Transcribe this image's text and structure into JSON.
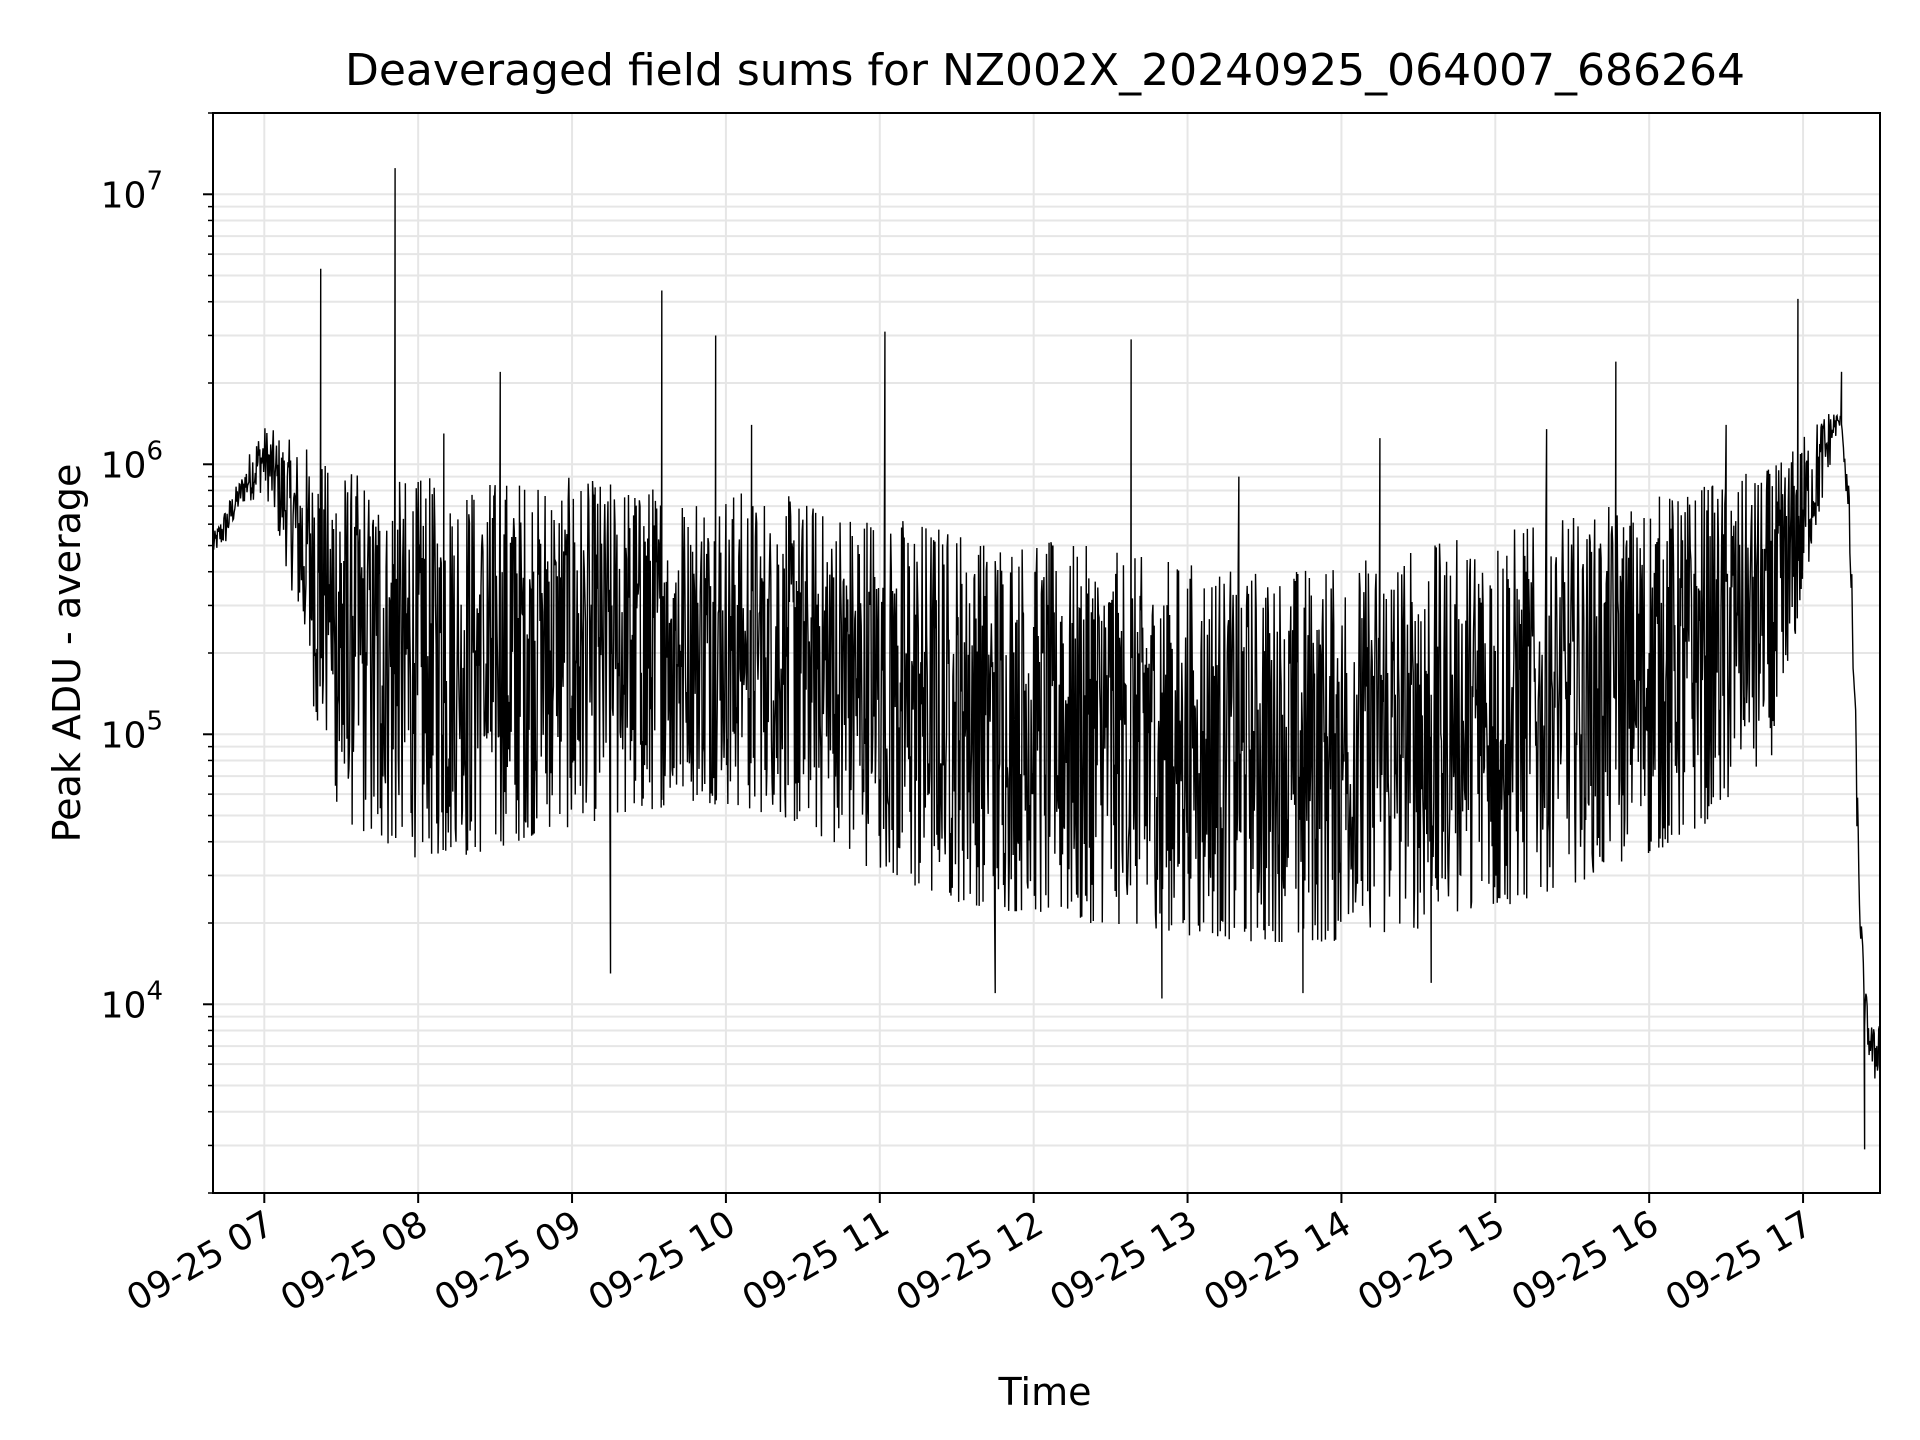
{
  "chart_data": {
    "type": "line",
    "title": "Deaveraged field sums for NZ002X_20240925_064007_686264",
    "xlabel": "Time",
    "ylabel": "Peak ADU - average",
    "yscale": "log",
    "ylim": [
      2000,
      20000000
    ],
    "xlim": [
      "2024-09-25 06:40",
      "2024-09-25 17:30"
    ],
    "grid": true,
    "legend": "none",
    "line_color": "#000000",
    "x_ticks": [
      "09-25 07",
      "09-25 08",
      "09-25 09",
      "09-25 10",
      "09-25 11",
      "09-25 12",
      "09-25 13",
      "09-25 14",
      "09-25 15",
      "09-25 16",
      "09-25 17"
    ],
    "y_ticks": [
      {
        "value": 10000,
        "base": "10",
        "exp": "4"
      },
      {
        "value": 100000,
        "base": "10",
        "exp": "5"
      },
      {
        "value": 1000000,
        "base": "10",
        "exp": "6"
      },
      {
        "value": 10000000,
        "base": "10",
        "exp": "7"
      }
    ],
    "series": [
      {
        "x": [
          "06:40",
          "06:42",
          "06:45",
          "06:48",
          "06:51",
          "06:54",
          "06:57",
          "07:00",
          "07:03",
          "07:06",
          "07:09",
          "07:12",
          "07:15",
          "07:18",
          "07:21",
          "07:24",
          "07:27",
          "07:30",
          "07:35",
          "07:40",
          "07:45",
          "07:50",
          "07:55",
          "08:00",
          "08:10",
          "08:20",
          "08:30",
          "08:40",
          "08:50",
          "09:00",
          "09:10",
          "09:20",
          "09:30",
          "09:40",
          "09:50",
          "10:00",
          "10:10",
          "10:20",
          "10:30",
          "10:40",
          "10:50",
          "11:00",
          "11:10",
          "11:20",
          "11:30",
          "11:40",
          "11:50",
          "12:00",
          "12:10",
          "12:20",
          "12:30",
          "12:40",
          "12:50",
          "13:00",
          "13:10",
          "13:20",
          "13:30",
          "13:40",
          "13:50",
          "14:00",
          "14:10",
          "14:20",
          "14:30",
          "14:40",
          "14:50",
          "15:00",
          "15:10",
          "15:20",
          "15:30",
          "15:40",
          "15:50",
          "16:00",
          "16:10",
          "16:20",
          "16:30",
          "16:40",
          "16:50",
          "16:54",
          "16:57",
          "17:00",
          "17:03",
          "17:06",
          "17:09",
          "17:12",
          "17:15",
          "17:16",
          "17:18",
          "17:20",
          "17:22",
          "17:24",
          "17:26",
          "17:28",
          "17:30"
        ],
        "y_low": [
          450000,
          480000,
          500000,
          600000,
          700000,
          720000,
          750000,
          800000,
          650000,
          500000,
          400000,
          300000,
          200000,
          150000,
          100000,
          80000,
          60000,
          50000,
          45000,
          40000,
          40000,
          38000,
          35000,
          35000,
          35000,
          35000,
          38000,
          40000,
          45000,
          45000,
          48000,
          50000,
          52000,
          55000,
          55000,
          55000,
          52000,
          50000,
          45000,
          40000,
          35000,
          30000,
          28000,
          25000,
          24000,
          23000,
          22000,
          22000,
          21000,
          20000,
          20000,
          19000,
          19000,
          18000,
          18000,
          17000,
          17000,
          17000,
          17000,
          17000,
          18000,
          18000,
          19000,
          20000,
          21000,
          22000,
          24000,
          26000,
          28000,
          30000,
          33000,
          36000,
          40000,
          45000,
          55000,
          65000,
          90000,
          150000,
          200000,
          300000,
          450000,
          600000,
          800000,
          1200000,
          1400000,
          1000000,
          500000,
          100000,
          20000,
          8000,
          6000,
          5000,
          6000
        ],
        "y_high": [
          550000,
          600000,
          700000,
          800000,
          900000,
          1100000,
          1300000,
          1400000,
          1350000,
          1300000,
          1250000,
          1200000,
          1200000,
          1150000,
          1100000,
          1050000,
          1000000,
          1000000,
          950000,
          950000,
          900000,
          900000,
          900000,
          900000,
          900000,
          900000,
          900000,
          900000,
          900000,
          900000,
          880000,
          860000,
          850000,
          840000,
          830000,
          820000,
          800000,
          780000,
          750000,
          720000,
          700000,
          680000,
          650000,
          620000,
          600000,
          580000,
          560000,
          540000,
          520000,
          500000,
          480000,
          460000,
          450000,
          440000,
          430000,
          420000,
          420000,
          420000,
          430000,
          440000,
          460000,
          480000,
          500000,
          520000,
          550000,
          580000,
          600000,
          620000,
          650000,
          680000,
          720000,
          760000,
          800000,
          850000,
          900000,
          950000,
          1000000,
          1100000,
          1200000,
          1300000,
          1400000,
          1500000,
          1600000,
          1600000,
          1500000,
          1200000,
          800000,
          200000,
          30000,
          12000,
          9000,
          8000,
          10000
        ]
      }
    ],
    "spikes": [
      {
        "x": "07:22",
        "y": 5300000
      },
      {
        "x": "07:51",
        "y": 12500000
      },
      {
        "x": "08:32",
        "y": 2200000
      },
      {
        "x": "09:35",
        "y": 4400000
      },
      {
        "x": "09:56",
        "y": 3000000
      },
      {
        "x": "11:02",
        "y": 3100000
      },
      {
        "x": "12:38",
        "y": 2900000
      },
      {
        "x": "15:47",
        "y": 2400000
      },
      {
        "x": "16:58",
        "y": 4100000
      },
      {
        "x": "17:15",
        "y": 2200000
      },
      {
        "x": "08:10",
        "y": 1300000
      },
      {
        "x": "10:10",
        "y": 1400000
      },
      {
        "x": "13:20",
        "y": 900000
      },
      {
        "x": "14:15",
        "y": 1250000
      },
      {
        "x": "15:20",
        "y": 1350000
      },
      {
        "x": "16:30",
        "y": 1400000
      }
    ],
    "dips": [
      {
        "x": "09:15",
        "y": 13000
      },
      {
        "x": "11:45",
        "y": 11000
      },
      {
        "x": "12:50",
        "y": 10500
      },
      {
        "x": "13:45",
        "y": 11000
      },
      {
        "x": "14:35",
        "y": 12000
      },
      {
        "x": "17:24",
        "y": 2900
      }
    ]
  }
}
